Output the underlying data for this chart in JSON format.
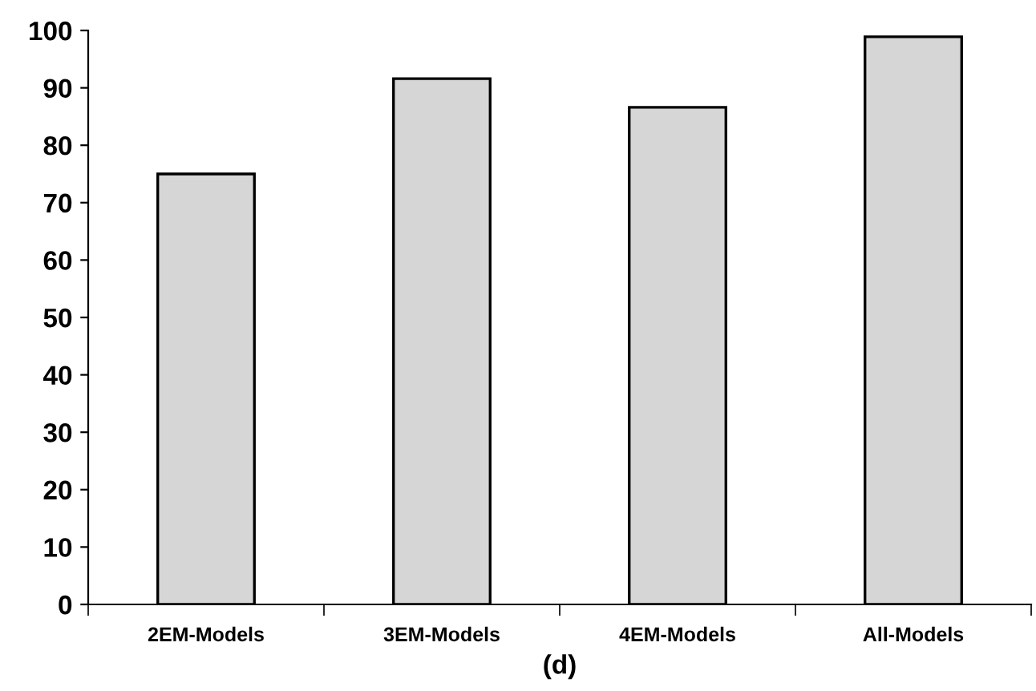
{
  "chart_data": {
    "type": "bar",
    "xlabel": "(d)",
    "categories": [
      "2EM-Models",
      "3EM-Models",
      "4EM-Models",
      "All-Models"
    ],
    "values": [
      75,
      91.6,
      86.6,
      98.9
    ],
    "color": "#d6d6d6",
    "ylim": [
      0,
      100
    ],
    "yticks": [
      0,
      10,
      20,
      30,
      40,
      50,
      60,
      70,
      80,
      90,
      100
    ],
    "grid": false,
    "legend": false
  }
}
